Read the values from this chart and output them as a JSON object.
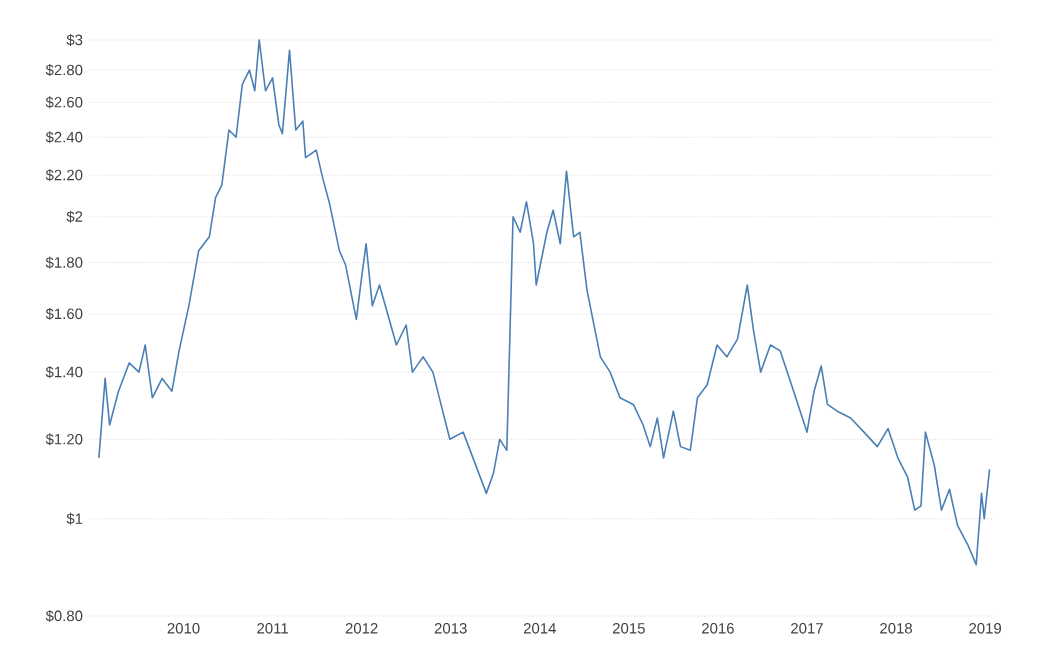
{
  "chart_data": {
    "type": "line",
    "log": "y",
    "grid": "y",
    "line_style": "solid",
    "xlim": [
      2008.95,
      2019.1
    ],
    "xticks": [
      2010,
      2011,
      2012,
      2013,
      2014,
      2015,
      2016,
      2017,
      2018,
      2019
    ],
    "ylim": [
      0.8,
      3
    ],
    "yticks": [
      {
        "value": 0.8,
        "label": "$0.80"
      },
      {
        "value": 1,
        "label": "$1"
      },
      {
        "value": 1.2,
        "label": "$1.20"
      },
      {
        "value": 1.4,
        "label": "$1.40"
      },
      {
        "value": 1.6,
        "label": "$1.60"
      },
      {
        "value": 1.8,
        "label": "$1.80"
      },
      {
        "value": 2,
        "label": "$2"
      },
      {
        "value": 2.2,
        "label": "$2.20"
      },
      {
        "value": 2.4,
        "label": "$2.40"
      },
      {
        "value": 2.6,
        "label": "$2.60"
      },
      {
        "value": 2.8,
        "label": "$2.80"
      },
      {
        "value": 3,
        "label": "$3"
      }
    ],
    "series": [
      {
        "color": "#4a7fb5",
        "x": [
          2009.05,
          2009.12,
          2009.17,
          2009.27,
          2009.39,
          2009.5,
          2009.57,
          2009.65,
          2009.76,
          2009.87,
          2009.95,
          2010.06,
          2010.17,
          2010.29,
          2010.36,
          2010.43,
          2010.51,
          2010.59,
          2010.66,
          2010.74,
          2010.8,
          2010.85,
          2010.92,
          2011.0,
          2011.07,
          2011.11,
          2011.19,
          2011.26,
          2011.34,
          2011.37,
          2011.49,
          2011.56,
          2011.64,
          2011.75,
          2011.82,
          2011.94,
          2012.0,
          2012.05,
          2012.12,
          2012.2,
          2012.31,
          2012.39,
          2012.5,
          2012.57,
          2012.69,
          2012.8,
          2012.91,
          2012.99,
          2013.14,
          2013.25,
          2013.4,
          2013.48,
          2013.55,
          2013.63,
          2013.7,
          2013.78,
          2013.85,
          2013.93,
          2013.96,
          2014.08,
          2014.15,
          2014.23,
          2014.3,
          2014.38,
          2014.45,
          2014.53,
          2014.68,
          2014.79,
          2014.9,
          2015.05,
          2015.16,
          2015.24,
          2015.32,
          2015.39,
          2015.5,
          2015.58,
          2015.69,
          2015.77,
          2015.88,
          2015.99,
          2016.1,
          2016.22,
          2016.33,
          2016.4,
          2016.48,
          2016.59,
          2016.7,
          2016.85,
          2017.0,
          2017.08,
          2017.16,
          2017.23,
          2017.34,
          2017.49,
          2017.64,
          2017.79,
          2017.91,
          2018.02,
          2018.13,
          2018.21,
          2018.28,
          2018.33,
          2018.43,
          2018.51,
          2018.6,
          2018.69,
          2018.81,
          2018.9,
          2018.96,
          2018.99,
          2019.05
        ],
        "values": [
          1.15,
          1.38,
          1.24,
          1.34,
          1.43,
          1.4,
          1.49,
          1.32,
          1.38,
          1.34,
          1.47,
          1.63,
          1.85,
          1.91,
          2.09,
          2.15,
          2.44,
          2.4,
          2.71,
          2.8,
          2.67,
          3.0,
          2.67,
          2.75,
          2.47,
          2.42,
          2.93,
          2.44,
          2.49,
          2.29,
          2.33,
          2.19,
          2.06,
          1.85,
          1.79,
          1.58,
          1.74,
          1.88,
          1.63,
          1.71,
          1.58,
          1.49,
          1.56,
          1.4,
          1.45,
          1.4,
          1.28,
          1.2,
          1.22,
          1.15,
          1.06,
          1.11,
          1.2,
          1.17,
          2.0,
          1.93,
          2.07,
          1.88,
          1.71,
          1.93,
          2.03,
          1.88,
          2.22,
          1.91,
          1.93,
          1.69,
          1.45,
          1.4,
          1.32,
          1.3,
          1.24,
          1.18,
          1.26,
          1.15,
          1.28,
          1.18,
          1.17,
          1.32,
          1.36,
          1.49,
          1.45,
          1.51,
          1.71,
          1.54,
          1.4,
          1.49,
          1.47,
          1.34,
          1.22,
          1.34,
          1.42,
          1.3,
          1.28,
          1.26,
          1.22,
          1.18,
          1.23,
          1.15,
          1.1,
          1.02,
          1.03,
          1.22,
          1.13,
          1.02,
          1.07,
          0.985,
          0.94,
          0.9,
          1.06,
          1.0,
          1.12
        ]
      }
    ]
  }
}
